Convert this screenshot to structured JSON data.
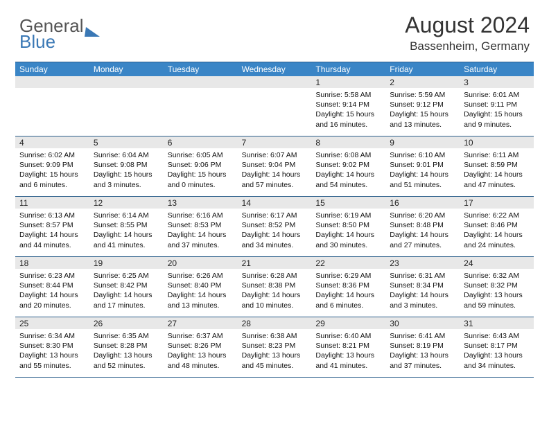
{
  "logo": {
    "line1": "General",
    "line2": "Blue"
  },
  "title": "August 2024",
  "location": "Bassenheim, Germany",
  "colors": {
    "header_bg": "#3a85c6",
    "header_text": "#ffffff",
    "border": "#2a5d8a",
    "daynum_bg": "#e8e8e8",
    "logo_accent": "#3a78b5"
  },
  "weekdays": [
    "Sunday",
    "Monday",
    "Tuesday",
    "Wednesday",
    "Thursday",
    "Friday",
    "Saturday"
  ],
  "weeks": [
    [
      {
        "num": "",
        "lines": []
      },
      {
        "num": "",
        "lines": []
      },
      {
        "num": "",
        "lines": []
      },
      {
        "num": "",
        "lines": []
      },
      {
        "num": "1",
        "lines": [
          "Sunrise: 5:58 AM",
          "Sunset: 9:14 PM",
          "Daylight: 15 hours",
          "and 16 minutes."
        ]
      },
      {
        "num": "2",
        "lines": [
          "Sunrise: 5:59 AM",
          "Sunset: 9:12 PM",
          "Daylight: 15 hours",
          "and 13 minutes."
        ]
      },
      {
        "num": "3",
        "lines": [
          "Sunrise: 6:01 AM",
          "Sunset: 9:11 PM",
          "Daylight: 15 hours",
          "and 9 minutes."
        ]
      }
    ],
    [
      {
        "num": "4",
        "lines": [
          "Sunrise: 6:02 AM",
          "Sunset: 9:09 PM",
          "Daylight: 15 hours",
          "and 6 minutes."
        ]
      },
      {
        "num": "5",
        "lines": [
          "Sunrise: 6:04 AM",
          "Sunset: 9:08 PM",
          "Daylight: 15 hours",
          "and 3 minutes."
        ]
      },
      {
        "num": "6",
        "lines": [
          "Sunrise: 6:05 AM",
          "Sunset: 9:06 PM",
          "Daylight: 15 hours",
          "and 0 minutes."
        ]
      },
      {
        "num": "7",
        "lines": [
          "Sunrise: 6:07 AM",
          "Sunset: 9:04 PM",
          "Daylight: 14 hours",
          "and 57 minutes."
        ]
      },
      {
        "num": "8",
        "lines": [
          "Sunrise: 6:08 AM",
          "Sunset: 9:02 PM",
          "Daylight: 14 hours",
          "and 54 minutes."
        ]
      },
      {
        "num": "9",
        "lines": [
          "Sunrise: 6:10 AM",
          "Sunset: 9:01 PM",
          "Daylight: 14 hours",
          "and 51 minutes."
        ]
      },
      {
        "num": "10",
        "lines": [
          "Sunrise: 6:11 AM",
          "Sunset: 8:59 PM",
          "Daylight: 14 hours",
          "and 47 minutes."
        ]
      }
    ],
    [
      {
        "num": "11",
        "lines": [
          "Sunrise: 6:13 AM",
          "Sunset: 8:57 PM",
          "Daylight: 14 hours",
          "and 44 minutes."
        ]
      },
      {
        "num": "12",
        "lines": [
          "Sunrise: 6:14 AM",
          "Sunset: 8:55 PM",
          "Daylight: 14 hours",
          "and 41 minutes."
        ]
      },
      {
        "num": "13",
        "lines": [
          "Sunrise: 6:16 AM",
          "Sunset: 8:53 PM",
          "Daylight: 14 hours",
          "and 37 minutes."
        ]
      },
      {
        "num": "14",
        "lines": [
          "Sunrise: 6:17 AM",
          "Sunset: 8:52 PM",
          "Daylight: 14 hours",
          "and 34 minutes."
        ]
      },
      {
        "num": "15",
        "lines": [
          "Sunrise: 6:19 AM",
          "Sunset: 8:50 PM",
          "Daylight: 14 hours",
          "and 30 minutes."
        ]
      },
      {
        "num": "16",
        "lines": [
          "Sunrise: 6:20 AM",
          "Sunset: 8:48 PM",
          "Daylight: 14 hours",
          "and 27 minutes."
        ]
      },
      {
        "num": "17",
        "lines": [
          "Sunrise: 6:22 AM",
          "Sunset: 8:46 PM",
          "Daylight: 14 hours",
          "and 24 minutes."
        ]
      }
    ],
    [
      {
        "num": "18",
        "lines": [
          "Sunrise: 6:23 AM",
          "Sunset: 8:44 PM",
          "Daylight: 14 hours",
          "and 20 minutes."
        ]
      },
      {
        "num": "19",
        "lines": [
          "Sunrise: 6:25 AM",
          "Sunset: 8:42 PM",
          "Daylight: 14 hours",
          "and 17 minutes."
        ]
      },
      {
        "num": "20",
        "lines": [
          "Sunrise: 6:26 AM",
          "Sunset: 8:40 PM",
          "Daylight: 14 hours",
          "and 13 minutes."
        ]
      },
      {
        "num": "21",
        "lines": [
          "Sunrise: 6:28 AM",
          "Sunset: 8:38 PM",
          "Daylight: 14 hours",
          "and 10 minutes."
        ]
      },
      {
        "num": "22",
        "lines": [
          "Sunrise: 6:29 AM",
          "Sunset: 8:36 PM",
          "Daylight: 14 hours",
          "and 6 minutes."
        ]
      },
      {
        "num": "23",
        "lines": [
          "Sunrise: 6:31 AM",
          "Sunset: 8:34 PM",
          "Daylight: 14 hours",
          "and 3 minutes."
        ]
      },
      {
        "num": "24",
        "lines": [
          "Sunrise: 6:32 AM",
          "Sunset: 8:32 PM",
          "Daylight: 13 hours",
          "and 59 minutes."
        ]
      }
    ],
    [
      {
        "num": "25",
        "lines": [
          "Sunrise: 6:34 AM",
          "Sunset: 8:30 PM",
          "Daylight: 13 hours",
          "and 55 minutes."
        ]
      },
      {
        "num": "26",
        "lines": [
          "Sunrise: 6:35 AM",
          "Sunset: 8:28 PM",
          "Daylight: 13 hours",
          "and 52 minutes."
        ]
      },
      {
        "num": "27",
        "lines": [
          "Sunrise: 6:37 AM",
          "Sunset: 8:26 PM",
          "Daylight: 13 hours",
          "and 48 minutes."
        ]
      },
      {
        "num": "28",
        "lines": [
          "Sunrise: 6:38 AM",
          "Sunset: 8:23 PM",
          "Daylight: 13 hours",
          "and 45 minutes."
        ]
      },
      {
        "num": "29",
        "lines": [
          "Sunrise: 6:40 AM",
          "Sunset: 8:21 PM",
          "Daylight: 13 hours",
          "and 41 minutes."
        ]
      },
      {
        "num": "30",
        "lines": [
          "Sunrise: 6:41 AM",
          "Sunset: 8:19 PM",
          "Daylight: 13 hours",
          "and 37 minutes."
        ]
      },
      {
        "num": "31",
        "lines": [
          "Sunrise: 6:43 AM",
          "Sunset: 8:17 PM",
          "Daylight: 13 hours",
          "and 34 minutes."
        ]
      }
    ]
  ]
}
